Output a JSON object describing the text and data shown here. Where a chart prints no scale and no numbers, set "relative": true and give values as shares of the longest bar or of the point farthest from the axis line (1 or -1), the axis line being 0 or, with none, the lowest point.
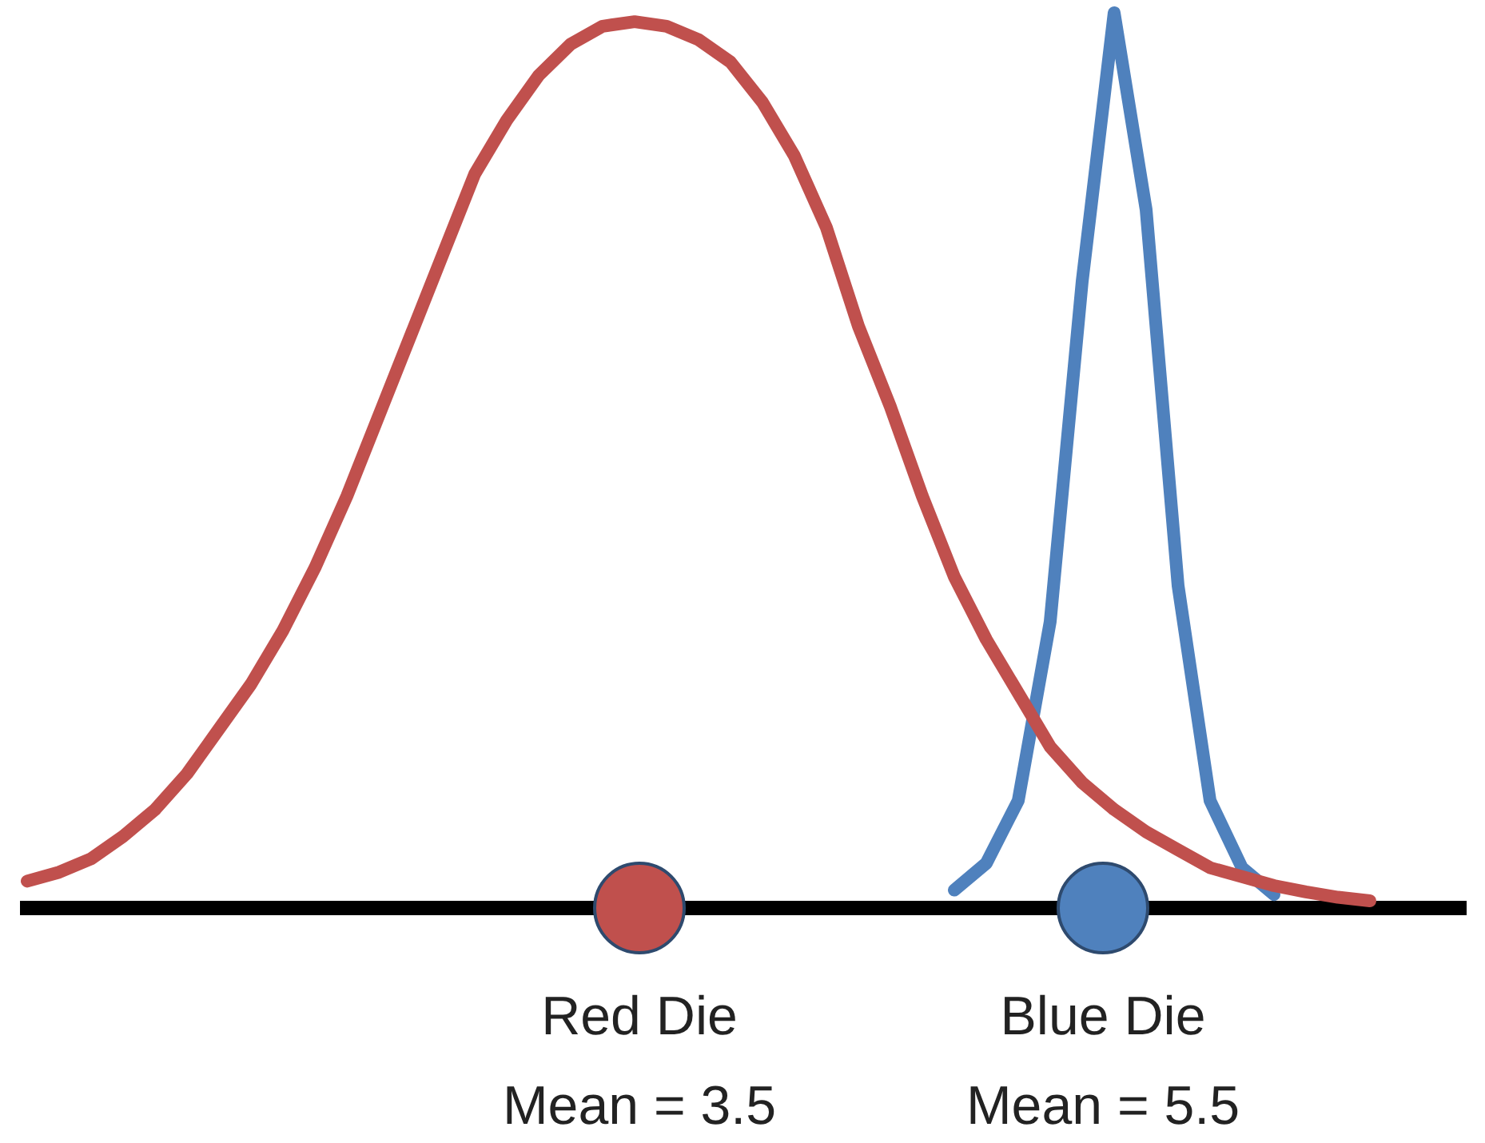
{
  "chart_data": {
    "type": "line",
    "relative": true,
    "categories": [
      null,
      null,
      null,
      null,
      null,
      null,
      null,
      null,
      null,
      null,
      null,
      null,
      null,
      null,
      null,
      null,
      null,
      null,
      null,
      null,
      null,
      null,
      null,
      null,
      null,
      null,
      null,
      null,
      null,
      null,
      null,
      null,
      null,
      null,
      null,
      null,
      null,
      null,
      null,
      null,
      null,
      null,
      null,
      null,
      null,
      null
    ],
    "series": [
      {
        "color": "#c0504d",
        "values": [
          0.03,
          0.04,
          0.055,
          0.08,
          0.11,
          0.15,
          0.2,
          0.25,
          0.31,
          0.38,
          0.46,
          0.55,
          0.64,
          0.73,
          0.82,
          0.88,
          0.93,
          0.965,
          0.985,
          0.99,
          0.985,
          0.97,
          0.945,
          0.9,
          0.84,
          0.76,
          0.65,
          0.56,
          0.46,
          0.37,
          0.3,
          0.24,
          0.18,
          0.14,
          0.11,
          0.085,
          0.065,
          0.045,
          0.035,
          0.025,
          0.018,
          0.012,
          0.008,
          null,
          null,
          null
        ]
      },
      {
        "color": "#4f81bd",
        "values": [
          null,
          null,
          null,
          null,
          null,
          null,
          null,
          null,
          null,
          null,
          null,
          null,
          null,
          null,
          null,
          null,
          null,
          null,
          null,
          null,
          null,
          null,
          null,
          null,
          null,
          null,
          null,
          null,
          null,
          0.02,
          0.05,
          0.12,
          0.32,
          0.7,
          1,
          0.78,
          0.36,
          0.12,
          0.045,
          0.015,
          null,
          null,
          null,
          null,
          null,
          null
        ]
      }
    ],
    "annotations": [
      "Red Die\nMean = 3.5",
      "Blue Die\nMean = 5.5"
    ]
  }
}
